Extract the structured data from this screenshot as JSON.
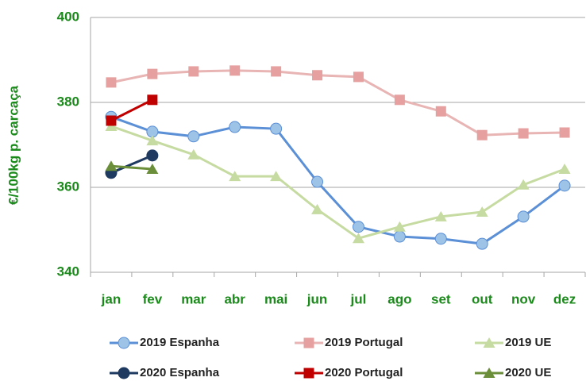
{
  "chart_data": {
    "type": "line",
    "y_label": "€/100kg p. carcaça",
    "categories": [
      "jan",
      "fev",
      "mar",
      "abr",
      "mai",
      "jun",
      "jul",
      "ago",
      "set",
      "out",
      "nov",
      "dez"
    ],
    "series": [
      {
        "name": "2019 Espanha",
        "color": "#5b8fd6",
        "marker_fill": "#9dc3e6",
        "marker": "circle",
        "values": [
          376.6,
          373.1,
          372.0,
          374.2,
          373.8,
          361.3,
          350.7,
          348.4,
          347.9,
          346.7,
          353.1,
          360.4
        ]
      },
      {
        "name": "2019 Portugal",
        "color": "#e8b4b4",
        "marker_fill": "#e6a0a0",
        "marker": "square",
        "values": [
          384.7,
          386.7,
          387.3,
          387.5,
          387.3,
          386.4,
          386.0,
          380.6,
          377.9,
          372.3,
          372.7,
          372.9
        ]
      },
      {
        "name": "2019 UE",
        "color": "#c6dba1",
        "marker_fill": "#c6dba1",
        "marker": "triangle",
        "values": [
          374.4,
          371.0,
          367.7,
          362.6,
          362.6,
          354.8,
          348.0,
          350.7,
          353.1,
          354.2,
          360.6,
          364.3
        ]
      },
      {
        "name": "2020 Espanha",
        "color": "#1f3a60",
        "marker_fill": "#1f3a60",
        "marker": "circle",
        "values": [
          363.4,
          367.5,
          null,
          null,
          null,
          null,
          null,
          null,
          null,
          null,
          null,
          null
        ]
      },
      {
        "name": "2020 Portugal",
        "color": "#c00000",
        "marker_fill": "#c00000",
        "marker": "square",
        "values": [
          375.7,
          380.6,
          null,
          null,
          null,
          null,
          null,
          null,
          null,
          null,
          null,
          null
        ]
      },
      {
        "name": "2020 UE",
        "color": "#6b8e3a",
        "marker_fill": "#6b8e3a",
        "marker": "triangle",
        "values": [
          365.0,
          364.3,
          null,
          null,
          null,
          null,
          null,
          null,
          null,
          null,
          null,
          null
        ]
      }
    ],
    "ylim": [
      340,
      400
    ],
    "yticks": [
      340,
      360,
      380,
      400
    ],
    "grid": true,
    "legend": "bottom"
  }
}
